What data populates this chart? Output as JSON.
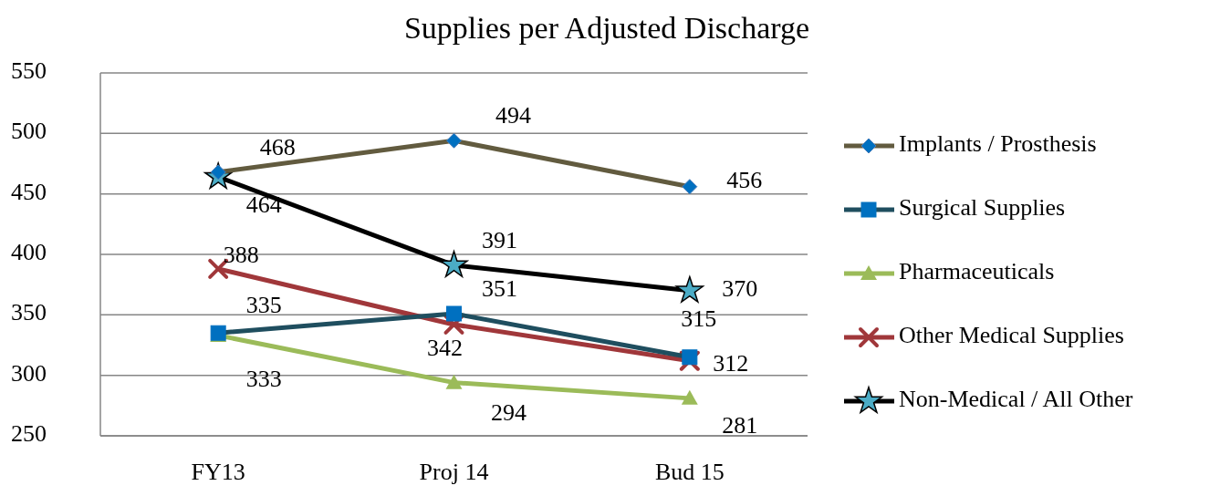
{
  "chart_data": {
    "type": "line",
    "title": "Supplies per Adjusted Discharge",
    "categories": [
      "FY13",
      "Proj 14",
      "Bud 15"
    ],
    "series": [
      {
        "name": "Implants / Prosthesis",
        "color": "#625b3f",
        "marker": "diamond",
        "values": [
          468,
          494,
          456
        ]
      },
      {
        "name": "Surgical Supplies",
        "color": "#1f4e5f",
        "marker": "square",
        "values": [
          335,
          351,
          315
        ]
      },
      {
        "name": "Pharmaceuticals",
        "color": "#9bbb59",
        "marker": "triangle",
        "values": [
          333,
          294,
          281
        ]
      },
      {
        "name": "Other Medical Supplies",
        "color": "#a0373a",
        "marker": "cross",
        "values": [
          388,
          342,
          312
        ]
      },
      {
        "name": "Non-Medical / All Other",
        "color": "#000000",
        "marker": "star",
        "values": [
          464,
          391,
          370
        ]
      }
    ],
    "ylim": [
      250,
      550
    ],
    "yticks": [
      250,
      300,
      350,
      400,
      450,
      500,
      550
    ],
    "grid": "y",
    "legend": "right",
    "data_labels": true
  }
}
